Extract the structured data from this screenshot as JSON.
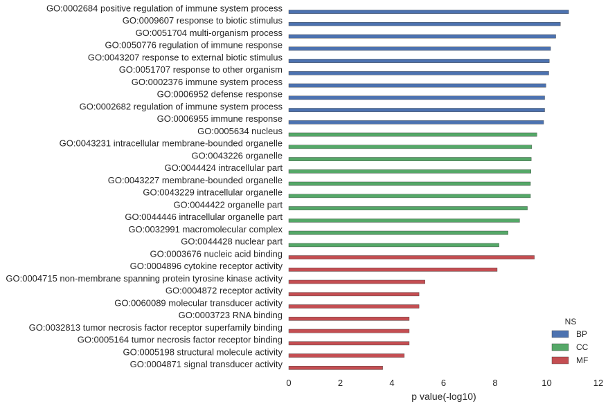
{
  "chart_data": {
    "type": "bar",
    "orientation": "horizontal",
    "xlabel": "p value(-log10)",
    "xlim": [
      0,
      12
    ],
    "xticks": [
      "0",
      "2",
      "4",
      "6",
      "8",
      "10",
      "12"
    ],
    "grid": false,
    "legend": {
      "title": "NS",
      "placement": "bottom-right",
      "entries": [
        "BP",
        "CC",
        "MF"
      ]
    },
    "colors": {
      "BP": "#4c72b0",
      "CC": "#55a868",
      "MF": "#c44e52"
    },
    "categories": [
      "GO:0002684 positive regulation of immune system process",
      "GO:0009607 response to biotic stimulus",
      "GO:0051704 multi-organism process",
      "GO:0050776 regulation of immune response",
      "GO:0043207 response to external biotic stimulus",
      "GO:0051707 response to other organism",
      "GO:0002376 immune system process",
      "GO:0006952 defense response",
      "GO:0002682 regulation of immune system process",
      "GO:0006955 immune response",
      "GO:0005634 nucleus",
      "GO:0043231 intracellular membrane-bounded organelle",
      "GO:0043226 organelle",
      "GO:0044424 intracellular part",
      "GO:0043227 membrane-bounded organelle",
      "GO:0043229 intracellular organelle",
      "GO:0044422 organelle part",
      "GO:0044446 intracellular organelle part",
      "GO:0032991 macromolecular complex",
      "GO:0044428 nuclear part",
      "GO:0003676 nucleic acid binding",
      "GO:0004896 cytokine receptor activity",
      "GO:0004715 non-membrane spanning protein tyrosine kinase activity",
      "GO:0004872 receptor activity",
      "GO:0060089 molecular transducer activity",
      "GO:0003723 RNA binding",
      "GO:0032813 tumor necrosis factor receptor superfamily binding",
      "GO:0005164 tumor necrosis factor receptor binding",
      "GO:0005198 structural molecule activity",
      "GO:0004871 signal transducer activity"
    ],
    "groups": [
      "BP",
      "BP",
      "BP",
      "BP",
      "BP",
      "BP",
      "BP",
      "BP",
      "BP",
      "BP",
      "CC",
      "CC",
      "CC",
      "CC",
      "CC",
      "CC",
      "CC",
      "CC",
      "CC",
      "CC",
      "MF",
      "MF",
      "MF",
      "MF",
      "MF",
      "MF",
      "MF",
      "MF",
      "MF",
      "MF"
    ],
    "values": [
      10.85,
      10.53,
      10.35,
      10.15,
      10.1,
      10.08,
      9.97,
      9.92,
      9.92,
      9.88,
      9.62,
      9.42,
      9.4,
      9.39,
      9.37,
      9.37,
      9.25,
      8.95,
      8.5,
      8.15,
      9.52,
      8.08,
      5.28,
      5.05,
      5.05,
      4.67,
      4.67,
      4.67,
      4.48,
      3.64
    ]
  }
}
